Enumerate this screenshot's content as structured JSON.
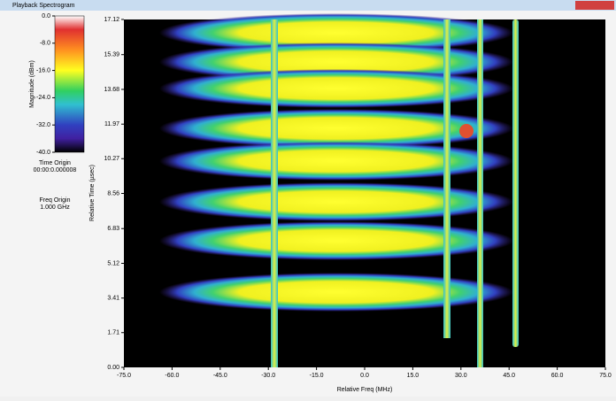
{
  "window": {
    "title": "Playback Spectrogram"
  },
  "colorbar": {
    "label": "Magnitude (dBm)",
    "lim": [
      -40,
      0
    ],
    "ticks": [
      {
        "value": 0,
        "label": "0.0"
      },
      {
        "value": -8,
        "label": "-8.0"
      },
      {
        "value": -16,
        "label": "-16.0"
      },
      {
        "value": -24,
        "label": "-24.0"
      },
      {
        "value": -32,
        "label": "-32.0"
      },
      {
        "value": -40,
        "label": "-40.0"
      }
    ]
  },
  "time_origin": {
    "label": "Time Origin",
    "value": "00:00:0.000008"
  },
  "freq_origin": {
    "label": "Freq Origin",
    "value": "1.000 GHz"
  },
  "plot": {
    "xlabel": "Relative Freq (MHz)",
    "ylabel": "Relative Time (µsec)",
    "xlim": [
      -75,
      75
    ],
    "ylim": [
      0,
      17.12
    ],
    "xticks": [
      {
        "value": -75,
        "label": "-75.0"
      },
      {
        "value": -60,
        "label": "-60.0"
      },
      {
        "value": -45,
        "label": "-45.0"
      },
      {
        "value": -30,
        "label": "-30.0"
      },
      {
        "value": -15,
        "label": "-15.0"
      },
      {
        "value": 0,
        "label": "0.0"
      },
      {
        "value": 15,
        "label": "15.0"
      },
      {
        "value": 30,
        "label": "30.0"
      },
      {
        "value": 45,
        "label": "45.0"
      },
      {
        "value": 60,
        "label": "60.0"
      },
      {
        "value": 75,
        "label": "75.0"
      }
    ],
    "yticks": [
      {
        "value": 0,
        "label": "0.00"
      },
      1.71,
      3.41,
      5.12,
      6.83,
      {
        "value": 8.56,
        "label": "8.56"
      },
      10.27,
      11.97,
      13.68,
      15.39,
      17.12
    ]
  }
}
